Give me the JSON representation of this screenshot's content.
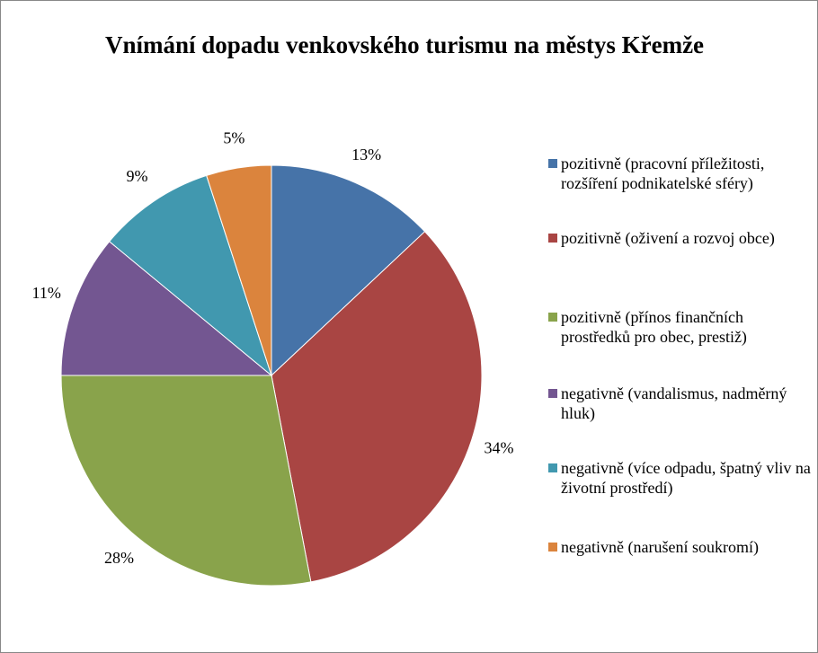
{
  "chart_data": {
    "type": "pie",
    "title": "Vnímání dopadu venkovského turismu na městys Křemže",
    "categories": [
      "pozitivně (pracovní příležitosti, rozšíření podnikatelské sféry)",
      "pozitivně (oživení a rozvoj obce)",
      "pozitivně (přínos finančních prostředků pro obec, prestiž)",
      "negativně (vandalismus, nadměrný hluk)",
      "negativně (více odpadu, špatný vliv na životní prostředí)",
      "negativně (narušení soukromí)"
    ],
    "values": [
      13,
      34,
      28,
      11,
      9,
      5
    ],
    "value_labels": [
      "13%",
      "34%",
      "28%",
      "11%",
      "9%",
      "5%"
    ],
    "colors": [
      "#4673a8",
      "#a94543",
      "#89a34b",
      "#735691",
      "#4198af",
      "#db843d"
    ],
    "legend": "right"
  }
}
